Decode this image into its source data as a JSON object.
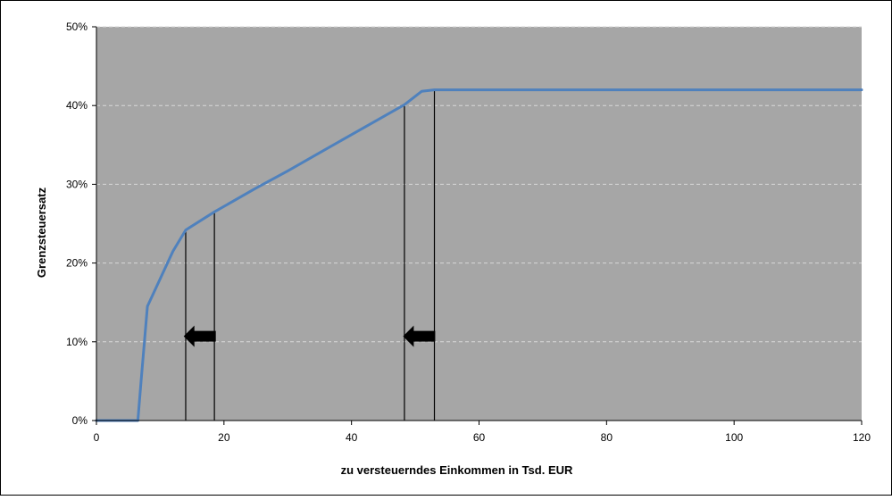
{
  "chart_data": {
    "type": "line",
    "title": "",
    "xlabel": "zu versteuerndes  Einkommen in Tsd. EUR",
    "ylabel": "Grenzsteuersatz",
    "xlim": [
      0,
      120
    ],
    "ylim": [
      0,
      50
    ],
    "x_ticks": [
      "0",
      "20",
      "40",
      "60",
      "80",
      "100",
      "120"
    ],
    "y_ticks": [
      "0%",
      "10%",
      "20%",
      "30%",
      "40%",
      "50%"
    ],
    "grid": "horizontal-dashed",
    "legend": "none",
    "series": [
      {
        "points": [
          [
            0,
            0
          ],
          [
            6.5,
            0
          ],
          [
            7,
            5
          ],
          [
            8,
            14.5
          ],
          [
            10,
            18
          ],
          [
            12,
            21.5
          ],
          [
            14,
            24.2
          ],
          [
            18.5,
            26.5
          ],
          [
            25,
            29.5
          ],
          [
            30,
            31.7
          ],
          [
            35,
            34
          ],
          [
            40,
            36.3
          ],
          [
            48.3,
            40.1
          ],
          [
            51,
            41.8
          ],
          [
            53,
            42
          ],
          [
            60,
            42
          ],
          [
            120,
            42
          ]
        ]
      }
    ],
    "reference_lines_x": [
      14,
      18.5,
      48.3,
      53
    ],
    "annotations": [
      {
        "type": "left-arrow",
        "x": 16.2,
        "y": 10.7
      },
      {
        "type": "left-arrow",
        "x": 50.6,
        "y": 10.7
      }
    ],
    "colors": {
      "plot_background": "#a6a6a6",
      "line": "#4f81bd",
      "gridline": "#d9d9d9",
      "reference_line": "#000000",
      "arrow": "#000000"
    }
  }
}
